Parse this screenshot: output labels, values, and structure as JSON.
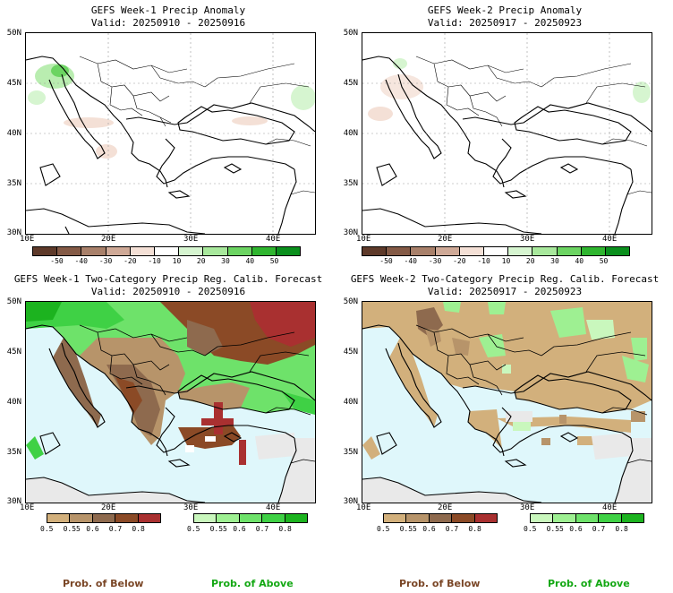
{
  "panels": [
    {
      "title": "GEFS Week-1 Precip Anomaly",
      "valid": "Valid: 20250910 - 20250916"
    },
    {
      "title": "GEFS Week-2 Precip Anomaly",
      "valid": "Valid: 20250917 - 20250923"
    },
    {
      "title": "GEFS Week-1 Two-Category Precip Reg. Calib. Forecast",
      "valid": "Valid: 20250910 - 20250916"
    },
    {
      "title": "GEFS Week-2 Two-Category Precip Reg. Calib. Forecast",
      "valid": "Valid: 20250917 - 20250923"
    }
  ],
  "axes": {
    "ylabels": [
      "50N",
      "45N",
      "40N",
      "35N",
      "30N"
    ],
    "xlabels": [
      "10E",
      "20E",
      "30E",
      "40E"
    ]
  },
  "anomaly_colorbar": {
    "labels": [
      "-50",
      "-40",
      "-30",
      "-20",
      "-10",
      "10",
      "20",
      "30",
      "40",
      "50"
    ],
    "colors": [
      "#5e3a2a",
      "#845a46",
      "#a8806a",
      "#cfa997",
      "#f4e0d6",
      "#ffffff",
      "#d6f5d0",
      "#a8e89c",
      "#6cd462",
      "#2fb52f",
      "#0a8f1c"
    ]
  },
  "below_colorbar": {
    "labels": [
      "0.5",
      "0.55",
      "0.6",
      "0.7",
      "0.8"
    ],
    "colors": [
      "#d2b07c",
      "#b7946a",
      "#8e6a4e",
      "#8b4a26",
      "#a93030"
    ]
  },
  "above_colorbar": {
    "labels": [
      "0.5",
      "0.55",
      "0.6",
      "0.7",
      "0.8"
    ],
    "colors": [
      "#c9f7bd",
      "#9ef092",
      "#6ee26a",
      "#3fd145",
      "#1cb31f"
    ]
  },
  "colors": {
    "sea_fill": "#dff7fb",
    "land_nodata": "#e9e9e9"
  },
  "captions": {
    "below": "Prob. of Below",
    "above": "Prob. of Above",
    "below_color": "#7a4626",
    "above_color": "#14a814"
  }
}
